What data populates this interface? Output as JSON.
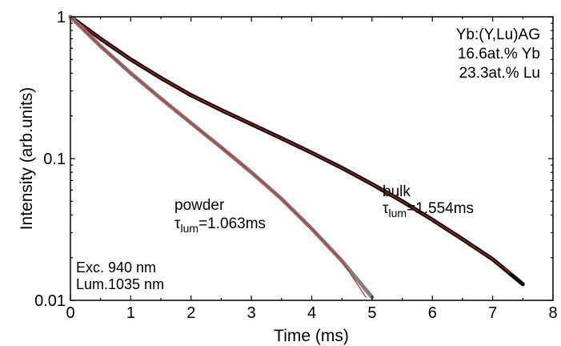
{
  "chart_data": {
    "type": "line",
    "xlabel": "Time (ms)",
    "ylabel": "Intensity (arb.units)",
    "xlim": [
      0,
      8
    ],
    "ylim": [
      0.01,
      1
    ],
    "yscale": "log",
    "x_ticks": [
      "0",
      "1",
      "2",
      "3",
      "4",
      "5",
      "6",
      "7",
      "8"
    ],
    "y_ticks": [
      "0.01",
      "0.1",
      "1"
    ],
    "grid": false,
    "series": [
      {
        "name": "bulk",
        "kind": "data",
        "color": "#000000",
        "points": [
          [
            0,
            1.0
          ],
          [
            0.5,
            0.7
          ],
          [
            1,
            0.5
          ],
          [
            1.5,
            0.37
          ],
          [
            2,
            0.28
          ],
          [
            2.5,
            0.22
          ],
          [
            3,
            0.175
          ],
          [
            3.5,
            0.139
          ],
          [
            4,
            0.11
          ],
          [
            4.5,
            0.086
          ],
          [
            5,
            0.066
          ],
          [
            5.5,
            0.05
          ],
          [
            6,
            0.037
          ],
          [
            6.5,
            0.027
          ],
          [
            7,
            0.0195
          ],
          [
            7.5,
            0.013
          ]
        ]
      },
      {
        "name": "bulk fit",
        "kind": "fit",
        "color": "#d42020",
        "points": [
          [
            0,
            1.0
          ],
          [
            0.5,
            0.7
          ],
          [
            1,
            0.5
          ],
          [
            1.5,
            0.37
          ],
          [
            2,
            0.28
          ],
          [
            2.5,
            0.22
          ],
          [
            3,
            0.175
          ],
          [
            3.5,
            0.139
          ],
          [
            4,
            0.11
          ],
          [
            4.5,
            0.086
          ],
          [
            5,
            0.066
          ],
          [
            5.5,
            0.05
          ],
          [
            6,
            0.037
          ],
          [
            6.5,
            0.027
          ],
          [
            7,
            0.0195
          ],
          [
            7.3,
            0.0155
          ]
        ]
      },
      {
        "name": "powder",
        "kind": "data",
        "color": "#808080",
        "points": [
          [
            0,
            1.0
          ],
          [
            0.5,
            0.62
          ],
          [
            1,
            0.4
          ],
          [
            1.5,
            0.265
          ],
          [
            2,
            0.178
          ],
          [
            2.5,
            0.12
          ],
          [
            3,
            0.08
          ],
          [
            3.5,
            0.052
          ],
          [
            4,
            0.032
          ],
          [
            4.5,
            0.019
          ],
          [
            5,
            0.0105
          ]
        ]
      },
      {
        "name": "powder fit",
        "kind": "fit",
        "color": "#d42020",
        "points": [
          [
            0,
            1.0
          ],
          [
            0.5,
            0.62
          ],
          [
            1,
            0.4
          ],
          [
            1.5,
            0.265
          ],
          [
            2,
            0.178
          ],
          [
            2.5,
            0.12
          ],
          [
            3,
            0.08
          ],
          [
            3.5,
            0.052
          ],
          [
            4,
            0.032
          ],
          [
            4.5,
            0.019
          ],
          [
            4.9,
            0.0105
          ]
        ]
      }
    ],
    "annotations": {
      "sample": [
        "Yb:(Y,Lu)AG",
        "16.6at.% Yb",
        "23.3at.% Lu"
      ],
      "excitation": [
        "Exc. 940 nm",
        "Lum.1035 nm"
      ],
      "powder": {
        "name": "powder",
        "tau_symbol": "τ",
        "tau_sub": "lum",
        "tau_value": "=1.063ms"
      },
      "bulk": {
        "name": "bulk",
        "tau_symbol": "τ",
        "tau_sub": "lum",
        "tau_value": "=1.554ms"
      }
    }
  }
}
